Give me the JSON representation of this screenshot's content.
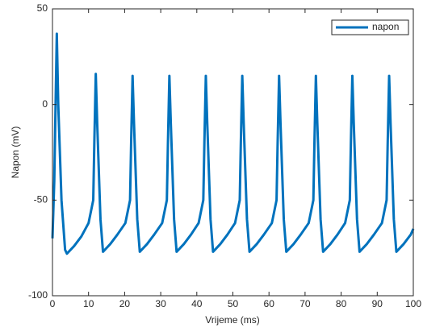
{
  "chart_data": {
    "type": "line",
    "x_label": "Vrijeme (ms)",
    "y_label": "Napon (mV)",
    "x": [
      0,
      0.5,
      1.2,
      1.6,
      2.5,
      3.5,
      4,
      6,
      8,
      10,
      11.3,
      11.6,
      12,
      12.4,
      13.3,
      14,
      16,
      18,
      20.2,
      21.5,
      21.8,
      22.2,
      22.6,
      23.5,
      24.2,
      26.2,
      28.2,
      30.4,
      31.7,
      32,
      32.4,
      32.8,
      33.7,
      34.4,
      36.4,
      38.4,
      40.5,
      41.8,
      42.1,
      42.5,
      42.9,
      43.8,
      44.5,
      46.5,
      48.5,
      50.6,
      51.9,
      52.2,
      52.6,
      53,
      53.9,
      54.6,
      56.6,
      58.6,
      60.8,
      62.1,
      62.4,
      62.8,
      63.2,
      64.1,
      64.8,
      66.8,
      68.8,
      71,
      72.3,
      72.6,
      73,
      73.4,
      74.3,
      75,
      77,
      79,
      81.1,
      82.4,
      82.7,
      83.1,
      83.5,
      84.4,
      85.1,
      87.1,
      89.1,
      91.3,
      92.6,
      92.9,
      93.3,
      93.7,
      94.6,
      95.3,
      97.3,
      99.3,
      100
    ],
    "series": [
      {
        "name": "napon",
        "color": "#0072bd",
        "values": [
          -70,
          -40,
          37,
          0,
          -50,
          -76,
          -78,
          -74,
          -69,
          -62,
          -50,
          -20,
          16,
          -10,
          -60,
          -77,
          -73,
          -68,
          -62,
          -50,
          -20,
          15,
          -10,
          -60,
          -77,
          -73,
          -68,
          -62,
          -50,
          -20,
          15,
          -10,
          -60,
          -77,
          -73,
          -68,
          -62,
          -50,
          -20,
          15,
          -10,
          -60,
          -77,
          -73,
          -68,
          -62,
          -50,
          -20,
          15,
          -10,
          -60,
          -77,
          -73,
          -68,
          -62,
          -50,
          -20,
          15,
          -10,
          -60,
          -77,
          -73,
          -68,
          -62,
          -50,
          -20,
          15,
          -10,
          -60,
          -77,
          -73,
          -68,
          -62,
          -50,
          -20,
          15,
          -10,
          -60,
          -77,
          -73,
          -68,
          -62,
          -50,
          -20,
          15,
          -10,
          -60,
          -77,
          -73,
          -68,
          -65
        ]
      }
    ],
    "xlim": [
      0,
      100
    ],
    "xticks": [
      0,
      10,
      20,
      30,
      40,
      50,
      60,
      70,
      80,
      90,
      100
    ],
    "ylim": [
      -100,
      50
    ],
    "yticks": [
      -100,
      -50,
      0,
      50
    ],
    "grid": false,
    "legend": "top-right"
  }
}
